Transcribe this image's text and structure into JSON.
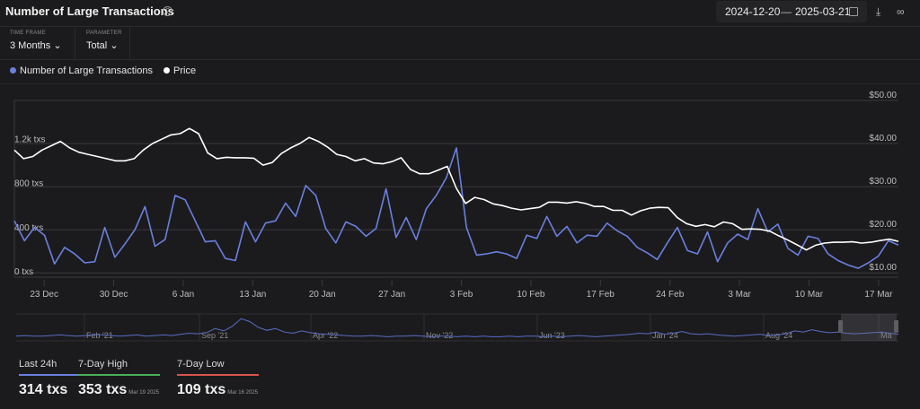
{
  "header": {
    "title": "Number of Large Transactions",
    "help_icon": "help-circle-icon",
    "range_start": "2024-12-20",
    "range_sep": "—",
    "range_end": "2025-03-21",
    "calendar_icon": "calendar-icon",
    "download_icon": "download-icon",
    "link_icon": "link-icon"
  },
  "controls": {
    "timeframe_label": "TIME FRAME",
    "timeframe_value": "3 Months",
    "parameter_label": "PARAMETER",
    "parameter_value": "Total"
  },
  "legend": [
    {
      "label": "Number of Large Transactions",
      "color": "#6b7fe0"
    },
    {
      "label": "Price",
      "color": "#ffffff"
    }
  ],
  "chart_data": {
    "type": "line",
    "x_tick_labels": [
      "23 Dec",
      "30 Dec",
      "6 Jan",
      "13 Jan",
      "20 Jan",
      "27 Jan",
      "3 Feb",
      "10 Feb",
      "17 Feb",
      "24 Feb",
      "3 Mar",
      "10 Mar",
      "17 Mar"
    ],
    "x_tick_days": [
      3,
      10,
      17,
      24,
      31,
      38,
      45,
      52,
      59,
      66,
      73,
      80,
      87
    ],
    "left_axis": {
      "ticks": [
        "0 txs",
        "400 txs",
        "800 txs",
        "1.2k txs"
      ],
      "tick_values": [
        0,
        400,
        800,
        1200
      ],
      "range": [
        0,
        1600
      ]
    },
    "right_axis": {
      "ticks": [
        "$10.00",
        "$20.00",
        "$30.00",
        "$40.00",
        "$50.00"
      ],
      "tick_values": [
        10,
        20,
        30,
        40,
        50
      ],
      "range": [
        9,
        50
      ]
    },
    "grid": true,
    "x_range_days": [
      0,
      89
    ],
    "series": [
      {
        "name": "Number of Large Transactions",
        "axis": "left",
        "color": "#6b7fe0",
        "values": [
          510,
          330,
          450,
          380,
          120,
          270,
          210,
          130,
          140,
          450,
          180,
          300,
          430,
          640,
          280,
          340,
          740,
          700,
          510,
          320,
          330,
          170,
          150,
          500,
          320,
          490,
          510,
          670,
          550,
          830,
          740,
          440,
          310,
          500,
          460,
          370,
          440,
          800,
          360,
          540,
          340,
          620,
          740,
          900,
          1170,
          450,
          200,
          210,
          230,
          210,
          170,
          380,
          350,
          550,
          370,
          460,
          310,
          380,
          370,
          490,
          420,
          370,
          270,
          220,
          160,
          310,
          450,
          240,
          210,
          410,
          140,
          310,
          390,
          340,
          620,
          410,
          480,
          260,
          200,
          370,
          350,
          210,
          150,
          110,
          80,
          130,
          190,
          330,
          290
        ]
      },
      {
        "name": "Price",
        "axis": "right",
        "color": "#ffffff",
        "values": [
          38.5,
          36.5,
          37,
          38.5,
          39.5,
          40.5,
          39,
          38,
          37.5,
          37,
          36.5,
          36,
          36,
          36.5,
          38.5,
          40,
          41,
          42,
          42.3,
          43.5,
          42.3,
          37.8,
          36.5,
          36.8,
          36.7,
          36.7,
          36.6,
          35,
          35.6,
          37.7,
          39,
          40,
          41.4,
          40.5,
          39.2,
          37.5,
          37,
          36,
          36.5,
          35.5,
          35.3,
          35.8,
          36.7,
          34,
          33,
          33,
          33.8,
          34.7,
          29.6,
          26.1,
          27.5,
          27,
          26,
          25.6,
          25,
          24.6,
          24.9,
          25.2,
          26.4,
          26.4,
          26.2,
          26.5,
          26.1,
          25.4,
          25.4,
          24.5,
          24.5,
          23.4,
          24.4,
          25,
          25.2,
          25.1,
          22.8,
          21.4,
          20.8,
          21.2,
          20.7,
          21.8,
          21.4,
          20.1,
          20.2,
          20.1,
          19.7,
          18.6,
          17.6,
          16.5,
          15.3,
          16.4,
          16.9,
          17.1,
          17.1,
          17.2,
          16.9,
          17.1,
          17.5,
          17.8,
          17.3
        ]
      }
    ]
  },
  "navigator": {
    "labels": [
      "Feb '21",
      "Sep '21",
      "Apr '22",
      "Nov '22",
      "Jun '23",
      "Jan '24",
      "Aug '24",
      "Ma"
    ],
    "values": [
      5,
      6,
      5,
      5,
      6,
      7,
      6,
      5,
      6,
      8,
      7,
      6,
      5,
      6,
      7,
      5,
      6,
      7,
      6,
      8,
      10,
      9,
      11,
      18,
      14,
      22,
      35,
      30,
      20,
      15,
      18,
      12,
      10,
      14,
      11,
      9,
      8,
      7,
      6,
      5,
      5,
      6,
      5,
      4,
      5,
      5,
      6,
      5,
      4,
      5,
      5,
      4,
      5,
      4,
      5,
      4,
      4,
      5,
      4,
      5,
      5,
      4,
      5,
      4,
      5,
      6,
      5,
      4,
      5,
      6,
      7,
      8,
      10,
      9,
      12,
      8,
      10,
      13,
      9,
      8,
      9,
      7,
      6,
      5,
      6,
      7,
      8,
      6,
      7,
      9,
      14,
      12,
      16,
      13,
      11,
      12,
      10,
      9,
      10,
      11,
      12,
      10,
      8
    ]
  },
  "stats": [
    {
      "label": "Last 24h",
      "value": "314 txs",
      "note": "",
      "color": "#6b7fe0"
    },
    {
      "label": "7-Day High",
      "value": "353 txs",
      "note": "Mar 19 2025",
      "color": "#4cae5b"
    },
    {
      "label": "7-Day Low",
      "value": "109 txs",
      "note": "Mar 16 2025",
      "color": "#d9534f"
    }
  ]
}
